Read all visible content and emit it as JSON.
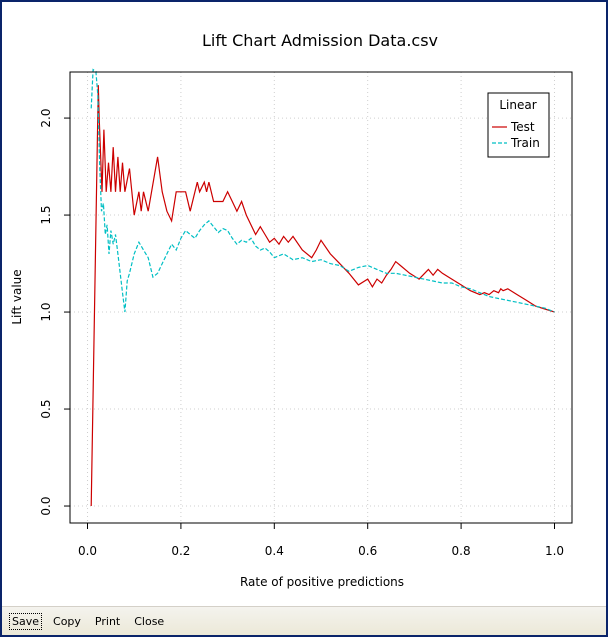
{
  "chart_data": {
    "type": "line",
    "title": "Lift Chart  Admission Data.csv",
    "xlabel": "Rate of positive predictions",
    "ylabel": "Lift value",
    "xlim": [
      -0.0375,
      1.0375
    ],
    "ylim": [
      -0.0875,
      2.2375
    ],
    "xticks": [
      "0.0",
      "0.2",
      "0.4",
      "0.6",
      "0.8",
      "1.0"
    ],
    "yticks": [
      "0.0",
      "0.5",
      "1.0",
      "1.5",
      "2.0"
    ],
    "grid": true,
    "legend": {
      "title": "Linear",
      "position": "top-right",
      "entries": [
        {
          "label": "Test",
          "color": "#cc0000",
          "style": "solid"
        },
        {
          "label": "Train",
          "color": "#00bfc4",
          "style": "dashed"
        }
      ]
    },
    "series": [
      {
        "name": "Test",
        "color": "#cc0000",
        "style": "solid",
        "x": [
          0.008,
          0.023,
          0.025,
          0.031,
          0.035,
          0.04,
          0.045,
          0.05,
          0.055,
          0.06,
          0.065,
          0.07,
          0.075,
          0.08,
          0.09,
          0.1,
          0.11,
          0.115,
          0.12,
          0.13,
          0.15,
          0.16,
          0.17,
          0.18,
          0.19,
          0.2,
          0.21,
          0.22,
          0.235,
          0.24,
          0.25,
          0.255,
          0.26,
          0.27,
          0.28,
          0.29,
          0.3,
          0.31,
          0.32,
          0.33,
          0.34,
          0.36,
          0.37,
          0.38,
          0.39,
          0.4,
          0.41,
          0.42,
          0.43,
          0.44,
          0.46,
          0.48,
          0.49,
          0.5,
          0.52,
          0.54,
          0.56,
          0.58,
          0.6,
          0.61,
          0.62,
          0.63,
          0.64,
          0.65,
          0.66,
          0.67,
          0.69,
          0.71,
          0.73,
          0.74,
          0.75,
          0.76,
          0.78,
          0.8,
          0.82,
          0.84,
          0.85,
          0.86,
          0.87,
          0.88,
          0.885,
          0.89,
          0.9,
          0.92,
          0.94,
          0.96,
          1.0
        ],
        "y": [
          0.0,
          2.17,
          2.0,
          1.62,
          1.94,
          1.62,
          1.77,
          1.62,
          1.85,
          1.62,
          1.8,
          1.62,
          1.77,
          1.62,
          1.74,
          1.5,
          1.62,
          1.52,
          1.62,
          1.52,
          1.8,
          1.62,
          1.52,
          1.47,
          1.62,
          1.62,
          1.62,
          1.52,
          1.67,
          1.62,
          1.67,
          1.62,
          1.67,
          1.57,
          1.57,
          1.57,
          1.62,
          1.57,
          1.52,
          1.57,
          1.5,
          1.4,
          1.44,
          1.4,
          1.36,
          1.38,
          1.35,
          1.39,
          1.36,
          1.39,
          1.32,
          1.28,
          1.32,
          1.37,
          1.3,
          1.25,
          1.2,
          1.14,
          1.17,
          1.13,
          1.17,
          1.15,
          1.19,
          1.22,
          1.26,
          1.24,
          1.2,
          1.17,
          1.22,
          1.19,
          1.22,
          1.2,
          1.17,
          1.14,
          1.11,
          1.09,
          1.1,
          1.09,
          1.11,
          1.1,
          1.12,
          1.11,
          1.12,
          1.09,
          1.06,
          1.03,
          1.0
        ]
      },
      {
        "name": "Train",
        "color": "#00bfc4",
        "style": "dashed",
        "x": [
          0.008,
          0.012,
          0.018,
          0.022,
          0.026,
          0.03,
          0.034,
          0.038,
          0.042,
          0.046,
          0.05,
          0.055,
          0.06,
          0.065,
          0.07,
          0.075,
          0.08,
          0.085,
          0.09,
          0.1,
          0.11,
          0.12,
          0.13,
          0.14,
          0.15,
          0.16,
          0.17,
          0.18,
          0.19,
          0.2,
          0.21,
          0.22,
          0.23,
          0.24,
          0.25,
          0.26,
          0.27,
          0.28,
          0.29,
          0.3,
          0.31,
          0.32,
          0.33,
          0.34,
          0.35,
          0.36,
          0.37,
          0.38,
          0.39,
          0.4,
          0.42,
          0.44,
          0.46,
          0.48,
          0.5,
          0.52,
          0.54,
          0.56,
          0.58,
          0.6,
          0.62,
          0.64,
          0.66,
          0.68,
          0.7,
          0.72,
          0.74,
          0.76,
          0.78,
          0.8,
          0.82,
          0.84,
          0.86,
          0.88,
          0.9,
          0.92,
          0.94,
          0.96,
          0.98,
          1.0
        ],
        "y": [
          2.05,
          2.25,
          2.24,
          2.12,
          1.75,
          1.52,
          1.56,
          1.4,
          1.45,
          1.3,
          1.42,
          1.35,
          1.4,
          1.3,
          1.2,
          1.1,
          1.0,
          1.16,
          1.2,
          1.3,
          1.36,
          1.32,
          1.28,
          1.18,
          1.2,
          1.25,
          1.3,
          1.35,
          1.32,
          1.38,
          1.42,
          1.4,
          1.38,
          1.42,
          1.45,
          1.47,
          1.44,
          1.41,
          1.43,
          1.42,
          1.38,
          1.35,
          1.37,
          1.36,
          1.38,
          1.34,
          1.32,
          1.33,
          1.31,
          1.28,
          1.3,
          1.27,
          1.28,
          1.26,
          1.27,
          1.25,
          1.24,
          1.21,
          1.23,
          1.24,
          1.22,
          1.2,
          1.2,
          1.19,
          1.18,
          1.17,
          1.16,
          1.15,
          1.15,
          1.13,
          1.12,
          1.1,
          1.08,
          1.07,
          1.06,
          1.05,
          1.04,
          1.03,
          1.02,
          1.0
        ]
      }
    ]
  },
  "toolbar": {
    "save_label": "Save",
    "copy_label": "Copy",
    "print_label": "Print",
    "close_label": "Close"
  }
}
